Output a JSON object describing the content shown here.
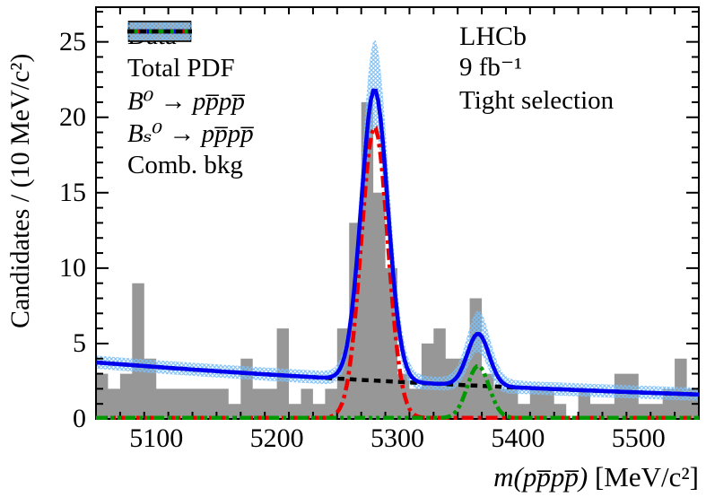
{
  "figure": {
    "annotations": {
      "experiment": "LHCb",
      "luminosity": "9 fb⁻¹",
      "selection": "Tight selection"
    }
  },
  "axes": {
    "x": {
      "title_math": "m(pp̅pp̅)",
      "title_units": " [MeV/c²]",
      "min": 5050,
      "max": 5550,
      "tick_values": [
        5100,
        5200,
        5300,
        5400,
        5500
      ],
      "tick_labels": [
        "5100",
        "5200",
        "5300",
        "5400",
        "5500"
      ],
      "minor_step": 20
    },
    "y": {
      "title": "Candidates / (10 MeV/c²)",
      "min": 0,
      "max": 27.3,
      "tick_values": [
        0,
        5,
        10,
        15,
        20,
        25
      ],
      "tick_labels": [
        "0",
        "5",
        "10",
        "15",
        "20",
        "25"
      ],
      "minor_step": 1
    }
  },
  "legend": {
    "entries": [
      {
        "label": "Data",
        "marker": "gray-filled-box"
      },
      {
        "label": "Total PDF",
        "marker": "blue-line-on-hatched-band"
      },
      {
        "label": "B⁰ → pp̅pp̅",
        "marker": "red-dash-dot-line"
      },
      {
        "label": "Bₛ⁰ → pp̅pp̅",
        "marker": "green-dash-dot-dot-line"
      },
      {
        "label": "Comb. bkg",
        "marker": "black-dashed-line"
      }
    ]
  },
  "colors": {
    "data_fill": "#979797",
    "data_edge": "#000000",
    "total_pdf": "#0000ee",
    "band_hatch": "#7cc0f8",
    "b0_signal": "#ee0000",
    "bs_signal": "#009900",
    "comb_bkg": "#000000",
    "axis": "#000000"
  },
  "chart_data": {
    "type": "bar",
    "subtype": "step-histogram-with-fit-curves",
    "title": "",
    "xlabel": "m(pppp) [MeV/c2]",
    "ylabel": "Candidates / (10 MeV/c2)",
    "xlim": [
      5050,
      5550
    ],
    "ylim": [
      0,
      27.3
    ],
    "grid": false,
    "legend_position": "top-left-inside",
    "bin_start": 5050,
    "bin_width": 10,
    "values": [
      3,
      2,
      3,
      9,
      4,
      2,
      2,
      2,
      2,
      2,
      2,
      1,
      4,
      2,
      2,
      6,
      1,
      2,
      1,
      2,
      6,
      13,
      21,
      15,
      10,
      3,
      2,
      5,
      6,
      4,
      4,
      8,
      3,
      2,
      2,
      1,
      2,
      2,
      1,
      0,
      2,
      1,
      1,
      3,
      3,
      1,
      1,
      2,
      4,
      2
    ],
    "curves": {
      "background": {
        "name": "Comb. bkg",
        "shape": "exponential",
        "y_at_xmin": 3.75,
        "y_at_xmax": 1.62,
        "style": "dashed"
      },
      "b0_signal": {
        "name": "B0 -> pppp",
        "shape": "gaussian",
        "mean": 5281,
        "sigma": 11,
        "amplitude": 19.3,
        "baseline": 0.07,
        "style": "dash-dot"
      },
      "bs_signal": {
        "name": "Bs0 -> pppp",
        "shape": "gaussian",
        "mean": 5367,
        "sigma": 9,
        "amplitude": 3.45,
        "baseline": 0.07,
        "style": "dash-dot-dot"
      },
      "total": {
        "name": "Total PDF",
        "composition": "background + b0_signal + bs_signal",
        "peak_value_b0": 21.9,
        "peak_value_bs": 5.7,
        "style": "solid"
      }
    },
    "uncertainty_band": {
      "around": "total",
      "base_halfwidth_up": 0.45,
      "base_halfwidth_down": 0.42,
      "b0_extra_up": 2.9,
      "b0_extra_down": 2.2,
      "b0_center": 5283,
      "b0_width": 13,
      "bs_extra_up": 1.1,
      "bs_extra_down": 0.8,
      "bs_center": 5368,
      "bs_width": 11
    }
  }
}
